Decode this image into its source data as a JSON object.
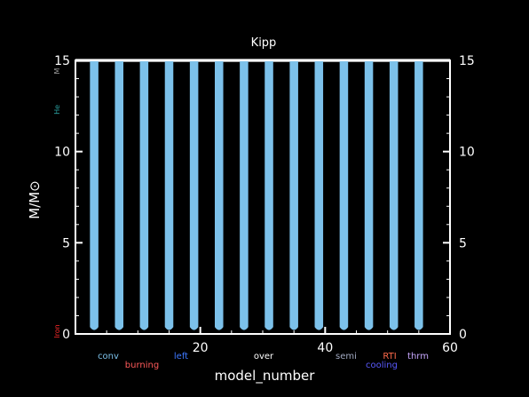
{
  "chart_data": {
    "type": "line",
    "title": "Kipp",
    "xlabel": "model_number",
    "ylabel": "M/M⊙",
    "xlim": [
      0,
      60
    ],
    "ylim": [
      0,
      15
    ],
    "x_ticks": [
      20,
      40,
      60
    ],
    "y_ticks": [
      0,
      5,
      10,
      15
    ],
    "y_tick_labels": [
      "0",
      "5",
      "10",
      "15"
    ],
    "grid": false,
    "series_color": "#7cc1ea",
    "mass_line_color": "#a0a0a0",
    "series": [
      {
        "x": [
          2.5,
          3.5,
          6.5,
          7.5,
          10.5,
          11.5,
          14.5,
          15.5,
          18.5,
          19.5,
          22.5,
          23.5,
          26.5,
          27.5,
          30.5,
          31.5,
          34.5,
          35.5,
          38.5,
          39.5,
          42.5,
          43.5,
          46.5,
          47.5,
          50.5,
          51.5,
          54.5,
          55.5
        ],
        "y": [
          15,
          15,
          15,
          15,
          15,
          15,
          15,
          15,
          15,
          15,
          15,
          15,
          15,
          15,
          15,
          15,
          15,
          15,
          15,
          15,
          15,
          15,
          15,
          15,
          15,
          15,
          15,
          15
        ],
        "y_low": 0.3
      }
    ],
    "mass_level": 15,
    "legend": [
      {
        "label": "conv",
        "color": "#7cc1ea"
      },
      {
        "label": "burning",
        "color": "#ff5a5a"
      },
      {
        "label": "left",
        "color": "#3e78ff"
      },
      {
        "label": "over",
        "color": "#ffffff"
      },
      {
        "label": "semi",
        "color": "#a0a8c0"
      },
      {
        "label": "cooling",
        "color": "#5a5aff"
      },
      {
        "label": "RTI",
        "color": "#ff6a4a"
      },
      {
        "label": "thrm",
        "color": "#c8a8ff"
      }
    ],
    "side_labels": [
      {
        "label": "M",
        "color": "#a0a0a0",
        "mass": 15
      },
      {
        "label": "He",
        "color": "#2aa0a0",
        "mass": 12.3
      },
      {
        "label": "Iron",
        "color": "#ff2a2a",
        "mass": 0.05
      }
    ]
  }
}
